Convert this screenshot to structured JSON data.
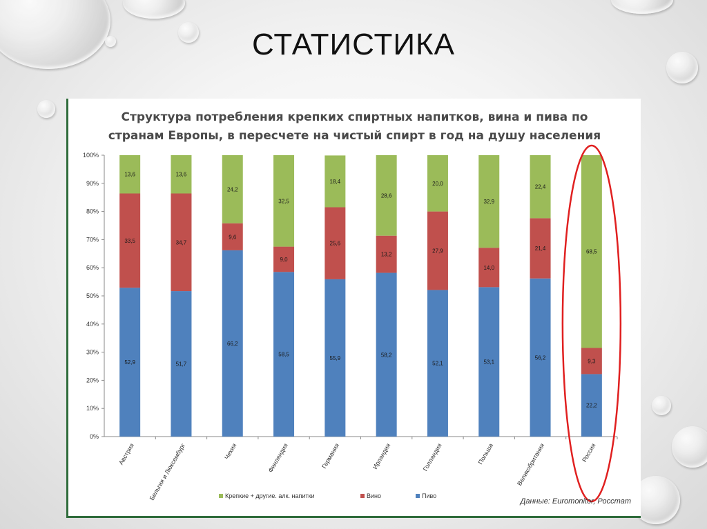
{
  "slide": {
    "title": "СТАТИСТИКА"
  },
  "chart_data": {
    "type": "bar",
    "stacked": true,
    "percent_stacked": true,
    "title": "Структура потребления крепких спиртных напитков, вина и пива по странам Европы, в пересчете на чистый спирт в год на душу населения",
    "title_lines": [
      "Структура потребления крепких спиртных напитков, вина и пива по",
      "странам Европы, в пересчете на чистый спирт в год на душу населения"
    ],
    "categories": [
      "Австрия",
      "Бельгия и Люксембург",
      "Чехия",
      "Финляндия",
      "Германия",
      "Ирландия",
      "Голландия",
      "Польша",
      "Великобритания",
      "Россия"
    ],
    "series": [
      {
        "name": "Пиво",
        "color": "#4f81bd",
        "values": [
          52.9,
          51.7,
          66.2,
          58.5,
          55.9,
          58.2,
          52.1,
          53.1,
          56.2,
          22.2
        ]
      },
      {
        "name": "Вино",
        "color": "#c0504d",
        "values": [
          33.5,
          34.7,
          9.6,
          9.0,
          25.6,
          13.2,
          27.9,
          14.0,
          21.4,
          9.3
        ]
      },
      {
        "name": "Крепкие + другие. алк. напитки",
        "color": "#9bbb59",
        "values": [
          13.6,
          13.6,
          24.2,
          32.5,
          18.4,
          28.6,
          20.0,
          32.9,
          22.4,
          68.5
        ]
      }
    ],
    "legend_order": [
      "Крепкие + другие. алк. напитки",
      "Вино",
      "Пиво"
    ],
    "y_ticks": [
      "0%",
      "10%",
      "20%",
      "30%",
      "40%",
      "50%",
      "60%",
      "70%",
      "80%",
      "90%",
      "100%"
    ],
    "ylim": [
      0,
      100
    ],
    "legend_position": "bottom",
    "highlight_category": "Россия",
    "highlight_color": "#e02020",
    "source": "Данные: Euromonitor, Росстат"
  }
}
